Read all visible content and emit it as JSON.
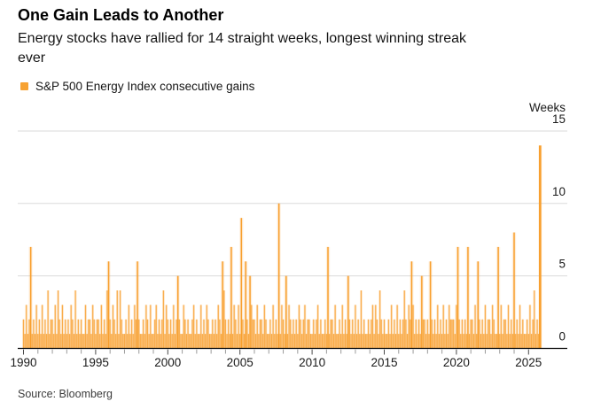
{
  "header": {
    "title": "One Gain Leads to Another",
    "subtitle_lines": [
      "Energy stocks have rallied for 14 straight weeks, longest winning streak",
      "ever"
    ]
  },
  "legend": {
    "label": "S&P 500 Energy Index consecutive gains",
    "swatch_color": "#F7A232"
  },
  "source": {
    "text": "Source: Bloomberg"
  },
  "chart_data": {
    "type": "bar",
    "title": "One Gain Leads to Another",
    "series_name": "S&P 500 Energy Index consecutive gains",
    "ylabel": "Weeks",
    "xlabel": "",
    "x_start_year": 1990,
    "x_end_year": 2026,
    "samples_per_year": 10,
    "x_tick_label_step": 5,
    "x_tick_labels": [
      "1990",
      "1995",
      "2000",
      "2005",
      "2010",
      "2015",
      "2020",
      "2025"
    ],
    "y_ticks": [
      0,
      5,
      10,
      15
    ],
    "ylim": [
      0,
      15
    ],
    "grid": true,
    "legend_position": "top-left",
    "bar_color": "#F89F2D",
    "grid_color": "#DADADA",
    "axis_color": "#000000",
    "minor_tick_color": "#9B9B9B",
    "major_tick_color": "#4A4A4A",
    "values_encoding": "one hex digit per 0.1-year sample starting Jan 1990; digit = consecutive weekly gains in that window (a=10, e=14)",
    "values": "21312712131213121412213142131212132141212113122132122131214621321414211213121326211213213112312124132121312521132121123121131213211212132164212171321319216215322131221321121312 1a1321513212121321231221121231211217122131121312152121312141211212313214212112131213121242132631212152212162121312131213222137212121712213162121312213211713122131218121312112 13124121e",
    "notable_peaks": [
      {
        "year": 1990.5,
        "weeks": 7
      },
      {
        "year": 1995.9,
        "weeks": 6
      },
      {
        "year": 1997.9,
        "weeks": 6
      },
      {
        "year": 2003.8,
        "weeks": 6
      },
      {
        "year": 2004.4,
        "weeks": 7
      },
      {
        "year": 2005.1,
        "weeks": 9
      },
      {
        "year": 2007.7,
        "weeks": 10
      },
      {
        "year": 2011.3,
        "weeks": 7
      },
      {
        "year": 2017.1,
        "weeks": 6
      },
      {
        "year": 2018.4,
        "weeks": 6
      },
      {
        "year": 2020.3,
        "weeks": 7
      },
      {
        "year": 2021.0,
        "weeks": 7
      },
      {
        "year": 2021.7,
        "weeks": 6
      },
      {
        "year": 2023.1,
        "weeks": 7
      },
      {
        "year": 2024.2,
        "weeks": 8
      },
      {
        "year": 2026.1,
        "weeks": 14
      }
    ]
  }
}
